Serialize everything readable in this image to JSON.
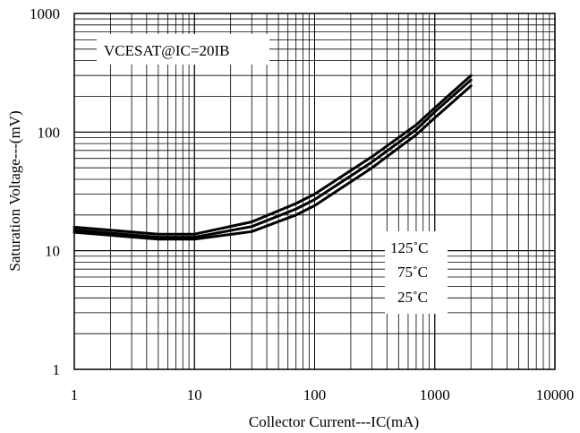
{
  "chart_data": {
    "type": "line",
    "title": "",
    "xlabel": "Collector Current---IC(mA)",
    "ylabel": "Saturation Voltage---(mV)",
    "xscale": "log",
    "yscale": "log",
    "xlim": [
      1,
      10000
    ],
    "ylim": [
      1,
      1000
    ],
    "x_ticks": [
      1,
      10,
      100,
      1000,
      10000
    ],
    "x_tick_labels": [
      "1",
      "10",
      "100",
      "1000",
      "10000"
    ],
    "y_ticks": [
      1,
      10,
      100,
      1000
    ],
    "y_tick_labels": [
      "1",
      "10",
      "100",
      "1000"
    ],
    "grid": true,
    "legend": "none",
    "annotation": "VCESAT@IC=20IB",
    "series_labels_box": [
      "125˚C",
      "75˚C",
      "25˚C"
    ],
    "series": [
      {
        "name": "125˚C",
        "x": [
          1,
          5,
          10,
          30,
          70,
          100,
          300,
          700,
          1000,
          2000
        ],
        "y": [
          15.8,
          13.8,
          13.8,
          17.5,
          25,
          30,
          62,
          115,
          160,
          300
        ]
      },
      {
        "name": "75˚C",
        "x": [
          1,
          5,
          10,
          30,
          70,
          100,
          300,
          700,
          1000,
          2000
        ],
        "y": [
          15,
          13,
          13,
          16,
          22.5,
          27,
          56,
          105,
          148,
          275
        ]
      },
      {
        "name": "25˚C",
        "x": [
          1,
          5,
          10,
          30,
          70,
          100,
          300,
          700,
          1000,
          2000
        ],
        "y": [
          14.3,
          12.5,
          12.5,
          14.5,
          20,
          24,
          50,
          95,
          132,
          245
        ]
      }
    ]
  }
}
